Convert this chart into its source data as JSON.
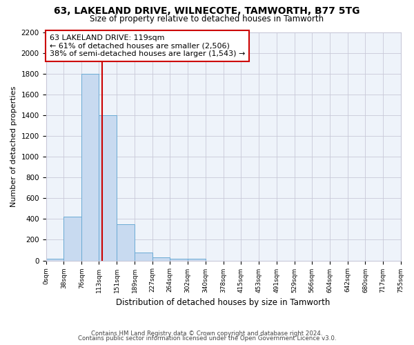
{
  "title1": "63, LAKELAND DRIVE, WILNECOTE, TAMWORTH, B77 5TG",
  "title2": "Size of property relative to detached houses in Tamworth",
  "xlabel": "Distribution of detached houses by size in Tamworth",
  "ylabel": "Number of detached properties",
  "annotation_line1": "63 LAKELAND DRIVE: 119sqm",
  "annotation_line2": "← 61% of detached houses are smaller (2,506)",
  "annotation_line3": "38% of semi-detached houses are larger (1,543) →",
  "footer1": "Contains HM Land Registry data © Crown copyright and database right 2024.",
  "footer2": "Contains public sector information licensed under the Open Government Licence v3.0.",
  "bar_color": "#c8daf0",
  "bar_edge_color": "#6aaad4",
  "red_line_color": "#cc0000",
  "background_color": "#ffffff",
  "grid_color": "#c8c8d8",
  "bin_edges": [
    0,
    38,
    76,
    113,
    151,
    189,
    227,
    264,
    302,
    340,
    378,
    415,
    453,
    491,
    529,
    566,
    604,
    642,
    680,
    717,
    755
  ],
  "bar_heights": [
    20,
    420,
    1800,
    1400,
    350,
    80,
    30,
    20,
    20,
    0,
    0,
    0,
    0,
    0,
    0,
    0,
    0,
    0,
    0,
    0
  ],
  "red_line_x": 119,
  "ylim": [
    0,
    2200
  ],
  "yticks": [
    0,
    200,
    400,
    600,
    800,
    1000,
    1200,
    1400,
    1600,
    1800,
    2000,
    2200
  ],
  "figsize": [
    6.0,
    5.0
  ],
  "dpi": 100
}
